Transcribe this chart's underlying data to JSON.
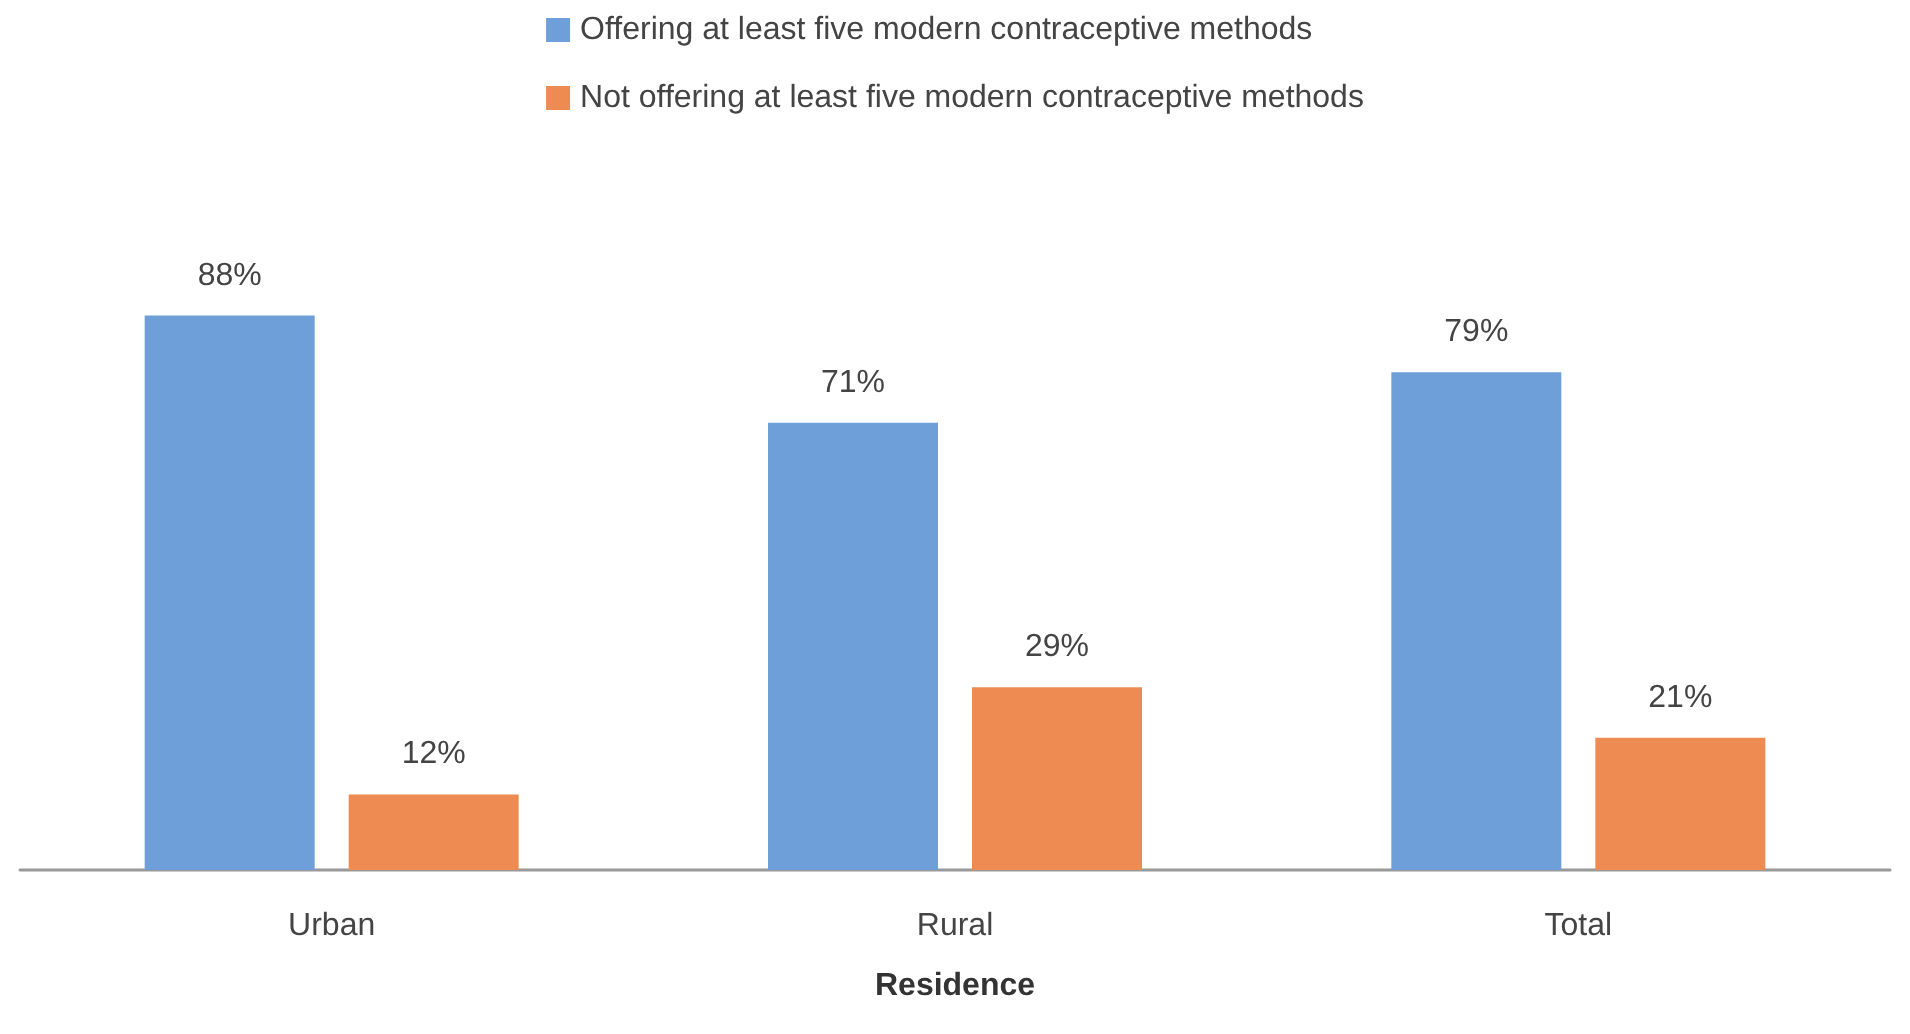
{
  "chart_data": {
    "type": "bar",
    "xlabel": "Residence",
    "categories": [
      "Urban",
      "Rural",
      "Total"
    ],
    "legend": "top",
    "series": [
      {
        "name": "Offering at least five modern contraceptive methods",
        "color": "#6f9fd8",
        "values": [
          88,
          71,
          79
        ],
        "value_labels": [
          "88%",
          "71%",
          "79%"
        ]
      },
      {
        "name": "Not offering at least five modern contraceptive methods",
        "color": "#ed8b52",
        "values": [
          12,
          29,
          21
        ],
        "value_labels": [
          "12%",
          "29%",
          "21%"
        ]
      }
    ]
  }
}
